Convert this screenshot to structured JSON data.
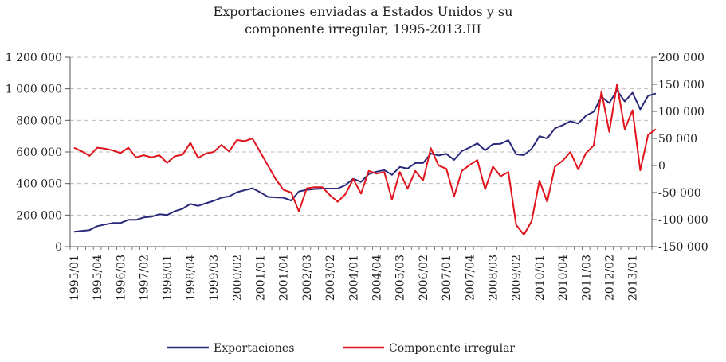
{
  "chart_data": {
    "type": "line",
    "title_line1": "Exportaciones enviadas a Estados Unidos y su",
    "title_line2": "componente irregular, 1995-2013.III",
    "ylim_left": [
      0,
      1200000
    ],
    "ylim_right": [
      -150000,
      200000
    ],
    "left_tick_labels": [
      "1 200 000",
      "1 000 000",
      "800 000",
      "600 000",
      "400 000",
      "200 000",
      "0"
    ],
    "right_tick_labels": [
      "200 000",
      "150 000",
      "100 000",
      "50 000",
      "0",
      "-50 000",
      "-100 000",
      "-150 000"
    ],
    "x_tick_labels": [
      "1995/01",
      "1995/04",
      "1996/03",
      "1997/02",
      "1998/01",
      "1998/04",
      "1999/03",
      "2000/02",
      "2001/01",
      "2001/04",
      "2002/03",
      "2003/02",
      "2004/01",
      "2004/04",
      "2005/03",
      "2006/02",
      "2007/01",
      "2007/04",
      "2008/03",
      "2009/02",
      "2010/01",
      "2010/04",
      "2011/03",
      "2012/02",
      "2013/01"
    ],
    "series": [
      {
        "name": "Exportaciones",
        "axis": "left",
        "color": "#2b2a7a",
        "values": [
          95000,
          100000,
          105000,
          130000,
          140000,
          150000,
          150000,
          170000,
          170000,
          185000,
          190000,
          205000,
          200000,
          225000,
          240000,
          270000,
          258000,
          275000,
          290000,
          310000,
          318000,
          345000,
          358000,
          370000,
          345000,
          315000,
          312000,
          310000,
          292000,
          350000,
          360000,
          365000,
          368000,
          368000,
          368000,
          390000,
          430000,
          410000,
          460000,
          475000,
          485000,
          455000,
          505000,
          495000,
          530000,
          530000,
          590000,
          578000,
          588000,
          550000,
          605000,
          628000,
          655000,
          610000,
          650000,
          652000,
          675000,
          585000,
          580000,
          620000,
          700000,
          685000,
          750000,
          770000,
          795000,
          780000,
          830000,
          855000,
          950000,
          910000,
          990000,
          920000,
          975000,
          870000,
          955000,
          970000
        ]
      },
      {
        "name": "Componente irregular",
        "axis": "right",
        "color": "#e0141c",
        "values": [
          33000,
          26000,
          18000,
          33000,
          31000,
          28000,
          23000,
          33000,
          15000,
          19000,
          15000,
          19000,
          5000,
          17000,
          20000,
          42000,
          14000,
          22000,
          25000,
          38000,
          26000,
          47000,
          45000,
          50000,
          25000,
          0,
          -25000,
          -45000,
          -50000,
          -85000,
          -42000,
          -40000,
          -40000,
          -55000,
          -67000,
          -53000,
          -25000,
          -52000,
          -10000,
          -15000,
          -12000,
          -63000,
          -12000,
          -43000,
          -10000,
          -28000,
          32000,
          0,
          -6000,
          -57000,
          -10000,
          1000,
          10000,
          -44000,
          -2000,
          -20000,
          -12000,
          -110000,
          -128000,
          -103000,
          -28000,
          -67000,
          -2000,
          9000,
          25000,
          -7000,
          23000,
          37000,
          137000,
          62000,
          150000,
          67000,
          102000,
          -9000,
          56000,
          67000
        ]
      }
    ]
  },
  "legend": {
    "item1": "Exportaciones",
    "item2": "Componente irregular"
  }
}
